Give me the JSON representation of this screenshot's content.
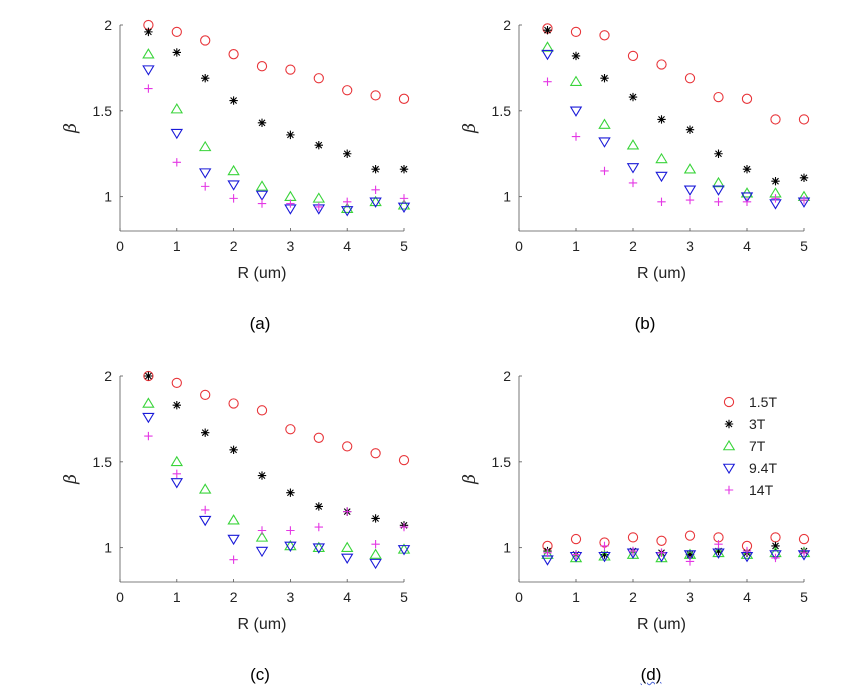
{
  "colors": {
    "1.5T": "#e8353a",
    "3T": "#000000",
    "7T": "#39d43a",
    "9.4T": "#1a1ad8",
    "14T": "#e437e4",
    "axis": "#555555"
  },
  "chart_data": [
    {
      "type": "scatter",
      "panel_label": "(a)",
      "xlabel": "R (um)",
      "ylabel": "β",
      "xlim": [
        0,
        5
      ],
      "ylim": [
        0.8,
        2
      ],
      "xticks": [
        "0",
        "1",
        "2",
        "3",
        "4",
        "5"
      ],
      "yticks": [
        "1",
        "1.5",
        "2"
      ],
      "x": [
        0.5,
        1,
        1.5,
        2,
        2.5,
        3,
        3.5,
        4,
        4.5,
        5
      ],
      "series": [
        {
          "name": "1.5T",
          "marker": "circle",
          "values": [
            2.0,
            1.96,
            1.91,
            1.83,
            1.76,
            1.74,
            1.69,
            1.62,
            1.59,
            1.57
          ]
        },
        {
          "name": "3T",
          "marker": "asterisk",
          "values": [
            1.96,
            1.84,
            1.69,
            1.56,
            1.43,
            1.36,
            1.3,
            1.25,
            1.16,
            1.16
          ]
        },
        {
          "name": "7T",
          "marker": "triangle-up",
          "values": [
            1.83,
            1.51,
            1.29,
            1.15,
            1.06,
            1.0,
            0.99,
            0.93,
            0.97,
            0.95
          ]
        },
        {
          "name": "9.4T",
          "marker": "triangle-down",
          "values": [
            1.74,
            1.37,
            1.14,
            1.07,
            1.01,
            0.93,
            0.93,
            0.92,
            0.97,
            0.94
          ]
        },
        {
          "name": "14T",
          "marker": "plus",
          "values": [
            1.63,
            1.2,
            1.06,
            0.99,
            0.96,
            0.96,
            0.94,
            0.97,
            1.04,
            0.99
          ]
        }
      ]
    },
    {
      "type": "scatter",
      "panel_label": "(b)",
      "xlabel": "R (um)",
      "ylabel": "β",
      "xlim": [
        0,
        5
      ],
      "ylim": [
        0.8,
        2
      ],
      "xticks": [
        "0",
        "1",
        "2",
        "3",
        "4",
        "5"
      ],
      "yticks": [
        "1",
        "1.5",
        "2"
      ],
      "x": [
        0.5,
        1,
        1.5,
        2,
        2.5,
        3,
        3.5,
        4,
        4.5,
        5
      ],
      "series": [
        {
          "name": "1.5T",
          "marker": "circle",
          "values": [
            1.98,
            1.96,
            1.94,
            1.82,
            1.77,
            1.69,
            1.58,
            1.57,
            1.45,
            1.45
          ]
        },
        {
          "name": "3T",
          "marker": "asterisk",
          "values": [
            1.97,
            1.82,
            1.69,
            1.58,
            1.45,
            1.39,
            1.25,
            1.16,
            1.09,
            1.11
          ]
        },
        {
          "name": "7T",
          "marker": "triangle-up",
          "values": [
            1.87,
            1.67,
            1.42,
            1.3,
            1.22,
            1.16,
            1.08,
            1.02,
            1.02,
            1.0
          ]
        },
        {
          "name": "9.4T",
          "marker": "triangle-down",
          "values": [
            1.83,
            1.5,
            1.32,
            1.17,
            1.12,
            1.04,
            1.04,
            1.0,
            0.96,
            0.97
          ]
        },
        {
          "name": "14T",
          "marker": "plus",
          "values": [
            1.67,
            1.35,
            1.15,
            1.08,
            0.97,
            0.98,
            0.97,
            0.97,
            0.99,
            0.98
          ]
        }
      ]
    },
    {
      "type": "scatter",
      "panel_label": "(c)",
      "xlabel": "R (um)",
      "ylabel": "β",
      "xlim": [
        0,
        5
      ],
      "ylim": [
        0.8,
        2
      ],
      "xticks": [
        "0",
        "1",
        "2",
        "3",
        "4",
        "5"
      ],
      "yticks": [
        "1",
        "1.5",
        "2"
      ],
      "x": [
        0.5,
        1,
        1.5,
        2,
        2.5,
        3,
        3.5,
        4,
        4.5,
        5
      ],
      "series": [
        {
          "name": "1.5T",
          "marker": "circle",
          "values": [
            2.0,
            1.96,
            1.89,
            1.84,
            1.8,
            1.69,
            1.64,
            1.59,
            1.55,
            1.51
          ]
        },
        {
          "name": "3T",
          "marker": "asterisk",
          "values": [
            2.0,
            1.83,
            1.67,
            1.57,
            1.42,
            1.32,
            1.24,
            1.21,
            1.17,
            1.13
          ]
        },
        {
          "name": "7T",
          "marker": "triangle-up",
          "values": [
            1.84,
            1.5,
            1.34,
            1.16,
            1.06,
            1.01,
            1.0,
            1.0,
            0.96,
            0.99
          ]
        },
        {
          "name": "9.4T",
          "marker": "triangle-down",
          "values": [
            1.76,
            1.38,
            1.16,
            1.05,
            0.98,
            1.01,
            1.0,
            0.94,
            0.91,
            0.99
          ]
        },
        {
          "name": "14T",
          "marker": "plus",
          "values": [
            1.65,
            1.43,
            1.22,
            0.93,
            1.1,
            1.1,
            1.12,
            1.21,
            1.02,
            1.12
          ]
        }
      ]
    },
    {
      "type": "scatter",
      "panel_label": "(d)",
      "xlabel": "R (um)",
      "ylabel": "β",
      "xlim": [
        0,
        5
      ],
      "ylim": [
        0.8,
        2
      ],
      "xticks": [
        "0",
        "1",
        "2",
        "3",
        "4",
        "5"
      ],
      "yticks": [
        "1",
        "1.5",
        "2"
      ],
      "x": [
        0.5,
        1,
        1.5,
        2,
        2.5,
        3,
        3.5,
        4,
        4.5,
        5
      ],
      "legend": {
        "position": "top-right",
        "entries": [
          "1.5T",
          "3T",
          "7T",
          "9.4T",
          "14T"
        ]
      },
      "series": [
        {
          "name": "1.5T",
          "marker": "circle",
          "values": [
            1.01,
            1.05,
            1.03,
            1.06,
            1.04,
            1.07,
            1.06,
            1.01,
            1.06,
            1.05
          ]
        },
        {
          "name": "3T",
          "marker": "asterisk",
          "values": [
            0.98,
            0.96,
            0.96,
            0.98,
            0.97,
            0.96,
            0.98,
            0.97,
            1.01,
            0.98
          ]
        },
        {
          "name": "7T",
          "marker": "triangle-up",
          "values": [
            0.96,
            0.94,
            0.95,
            0.96,
            0.94,
            0.96,
            0.97,
            0.96,
            0.97,
            0.97
          ]
        },
        {
          "name": "9.4T",
          "marker": "triangle-down",
          "values": [
            0.93,
            0.95,
            0.95,
            0.97,
            0.95,
            0.96,
            0.97,
            0.95,
            0.96,
            0.96
          ]
        },
        {
          "name": "14T",
          "marker": "plus",
          "values": [
            0.97,
            0.96,
            1.01,
            0.98,
            0.97,
            0.92,
            1.02,
            0.98,
            0.94,
            0.97
          ]
        }
      ]
    }
  ]
}
